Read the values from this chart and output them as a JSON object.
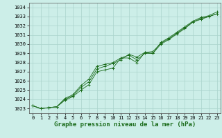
{
  "x": [
    0,
    1,
    2,
    3,
    4,
    5,
    6,
    7,
    8,
    9,
    10,
    11,
    12,
    13,
    14,
    15,
    16,
    17,
    18,
    19,
    20,
    21,
    22,
    23
  ],
  "line1": [
    1023.3,
    1023.0,
    1023.1,
    1023.2,
    1023.9,
    1024.3,
    1025.0,
    1025.6,
    1027.0,
    1027.2,
    1027.4,
    1028.5,
    1028.5,
    1028.0,
    1029.1,
    1029.2,
    1030.1,
    1030.6,
    1031.2,
    1031.8,
    1032.4,
    1032.8,
    1033.0,
    1033.3
  ],
  "line2": [
    1023.3,
    1023.0,
    1023.1,
    1023.2,
    1024.0,
    1024.4,
    1025.3,
    1025.9,
    1027.3,
    1027.6,
    1027.9,
    1028.3,
    1028.9,
    1028.6,
    1029.1,
    1029.0,
    1030.2,
    1030.7,
    1031.3,
    1031.9,
    1032.5,
    1032.9,
    1033.1,
    1033.5
  ],
  "line3": [
    1023.3,
    1023.0,
    1023.1,
    1023.2,
    1024.1,
    1024.5,
    1025.5,
    1026.2,
    1027.6,
    1027.8,
    1028.0,
    1028.5,
    1028.8,
    1028.3,
    1029.0,
    1029.0,
    1030.0,
    1030.5,
    1031.1,
    1031.7,
    1032.4,
    1032.7,
    1033.0,
    1033.3
  ],
  "ylim": [
    1022.5,
    1034.5
  ],
  "yticks": [
    1023,
    1024,
    1025,
    1026,
    1027,
    1028,
    1029,
    1030,
    1031,
    1032,
    1033,
    1034
  ],
  "xticks": [
    0,
    1,
    2,
    3,
    4,
    5,
    6,
    7,
    8,
    9,
    10,
    11,
    12,
    13,
    14,
    15,
    16,
    17,
    18,
    19,
    20,
    21,
    22,
    23
  ],
  "xlabel": "Graphe pression niveau de la mer (hPa)",
  "line_color": "#1a6b1a",
  "bg_color": "#cceee8",
  "grid_color": "#aad4cc",
  "marker": "+",
  "marker_size": 3,
  "xlabel_fontsize": 6.5,
  "tick_fontsize": 5.0
}
